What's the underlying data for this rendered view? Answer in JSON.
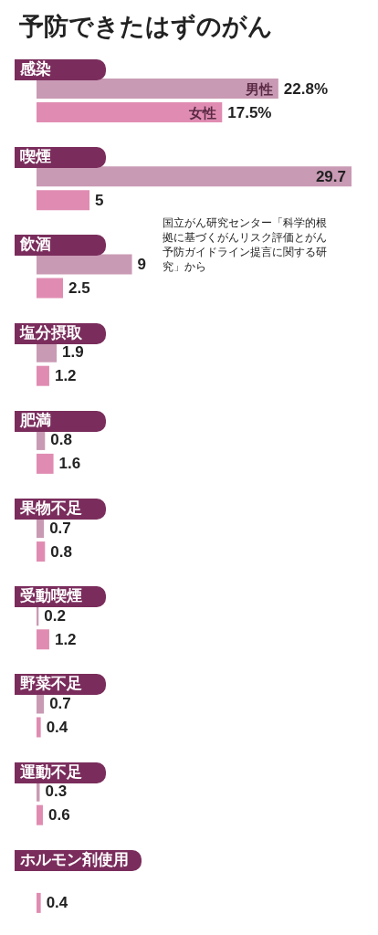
{
  "chart_data": {
    "type": "bar",
    "orientation": "horizontal",
    "title": "予防できたはずのがん",
    "categories": [
      "感染",
      "喫煙",
      "飲酒",
      "塩分摂取",
      "肥満",
      "果物不足",
      "受動喫煙",
      "野菜不足",
      "運動不足",
      "ホルモン剤使用"
    ],
    "series": [
      {
        "name": "男性",
        "color": "#c99ab4",
        "values": [
          22.8,
          29.7,
          9,
          1.9,
          0.8,
          0.7,
          0.2,
          0.7,
          0.3,
          null
        ],
        "value_labels": [
          "22.8%",
          "29.7",
          "9",
          "1.9",
          "0.8",
          "0.7",
          "0.2",
          "0.7",
          "0.3",
          null
        ]
      },
      {
        "name": "女性",
        "color": "#e08cb2",
        "values": [
          17.5,
          5,
          2.5,
          1.2,
          1.6,
          0.8,
          1.2,
          0.4,
          0.6,
          0.4
        ],
        "value_labels": [
          "17.5%",
          "5",
          "2.5",
          "1.2",
          "1.6",
          "0.8",
          "1.2",
          "0.4",
          "0.6",
          "0.4"
        ]
      }
    ],
    "annotations": [
      "国立がん研究センター「科学的根拠に基づくがんリスク評価とがん予防ガイドライン提言に関する研究」から"
    ],
    "legend": false
  }
}
